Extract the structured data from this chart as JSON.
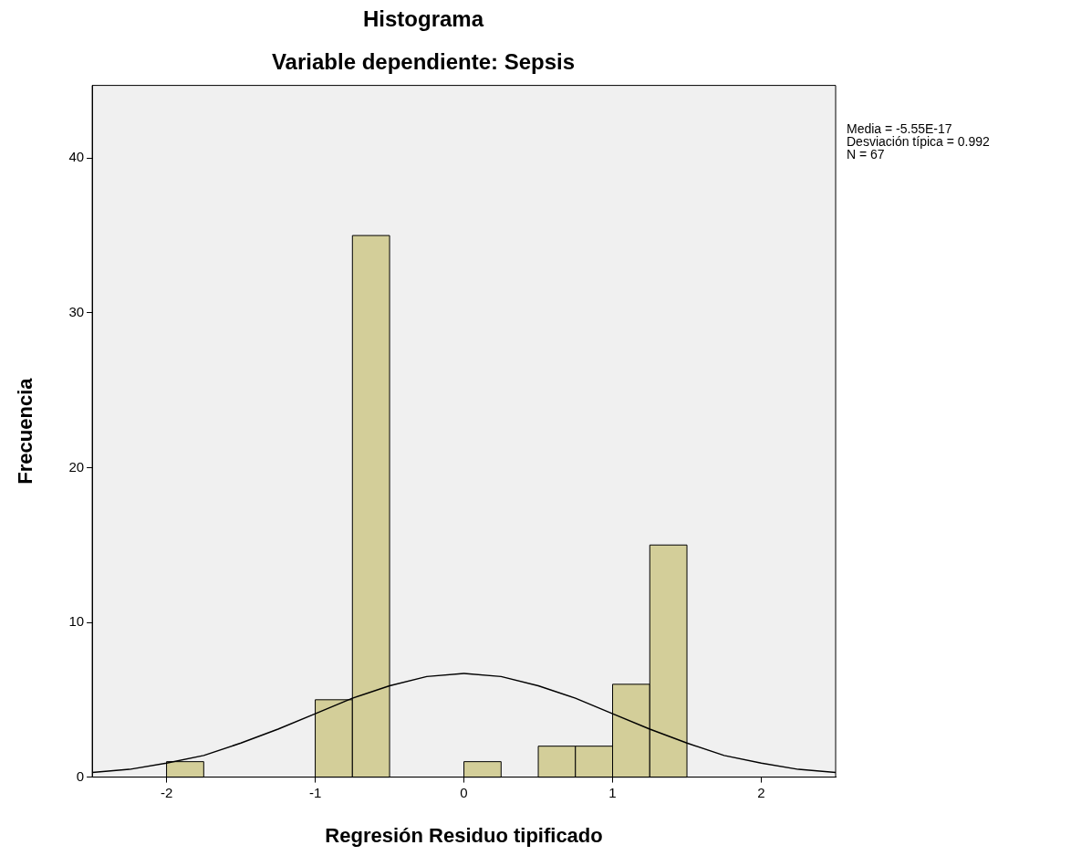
{
  "chart_data": {
    "type": "histogram",
    "title": "Histograma",
    "subtitle": "Variable dependiente: Sepsis",
    "xlabel": "Regresión Residuo tipificado",
    "ylabel": "Frecuencia",
    "bins": [
      -2,
      -1.75,
      -1,
      -0.75,
      -0.5,
      0,
      0.25,
      0.5,
      0.75,
      1,
      1.25,
      1.5
    ],
    "values": [
      1,
      0,
      5,
      35,
      0,
      1,
      0,
      2,
      2,
      6,
      15
    ],
    "color": "#d3ce99",
    "series": [
      {
        "type": "line",
        "color": "#000000",
        "x": [
          -2.5,
          -2.25,
          -2,
          -1.75,
          -1.5,
          -1.25,
          -1,
          -0.75,
          -0.5,
          -0.25,
          0,
          0.25,
          0.5,
          0.75,
          1,
          1.25,
          1.5,
          1.75,
          2,
          2.25,
          2.5
        ],
        "values": [
          0.3,
          0.5,
          0.9,
          1.4,
          2.2,
          3.1,
          4.1,
          5.1,
          5.9,
          6.5,
          6.7,
          6.5,
          5.9,
          5.1,
          4.1,
          3.1,
          2.2,
          1.4,
          0.9,
          0.5,
          0.3
        ]
      }
    ],
    "xlim": [
      -2.5,
      2.5
    ],
    "ylim": [
      0,
      44.7
    ],
    "xticks": [
      -2,
      -1,
      0,
      1,
      2
    ],
    "yticks": [
      0,
      10,
      20,
      30,
      40
    ],
    "grid": false,
    "annotations": [
      "Media = -5.55E-17",
      "Desviación típica = 0.992",
      "N = 67"
    ]
  }
}
